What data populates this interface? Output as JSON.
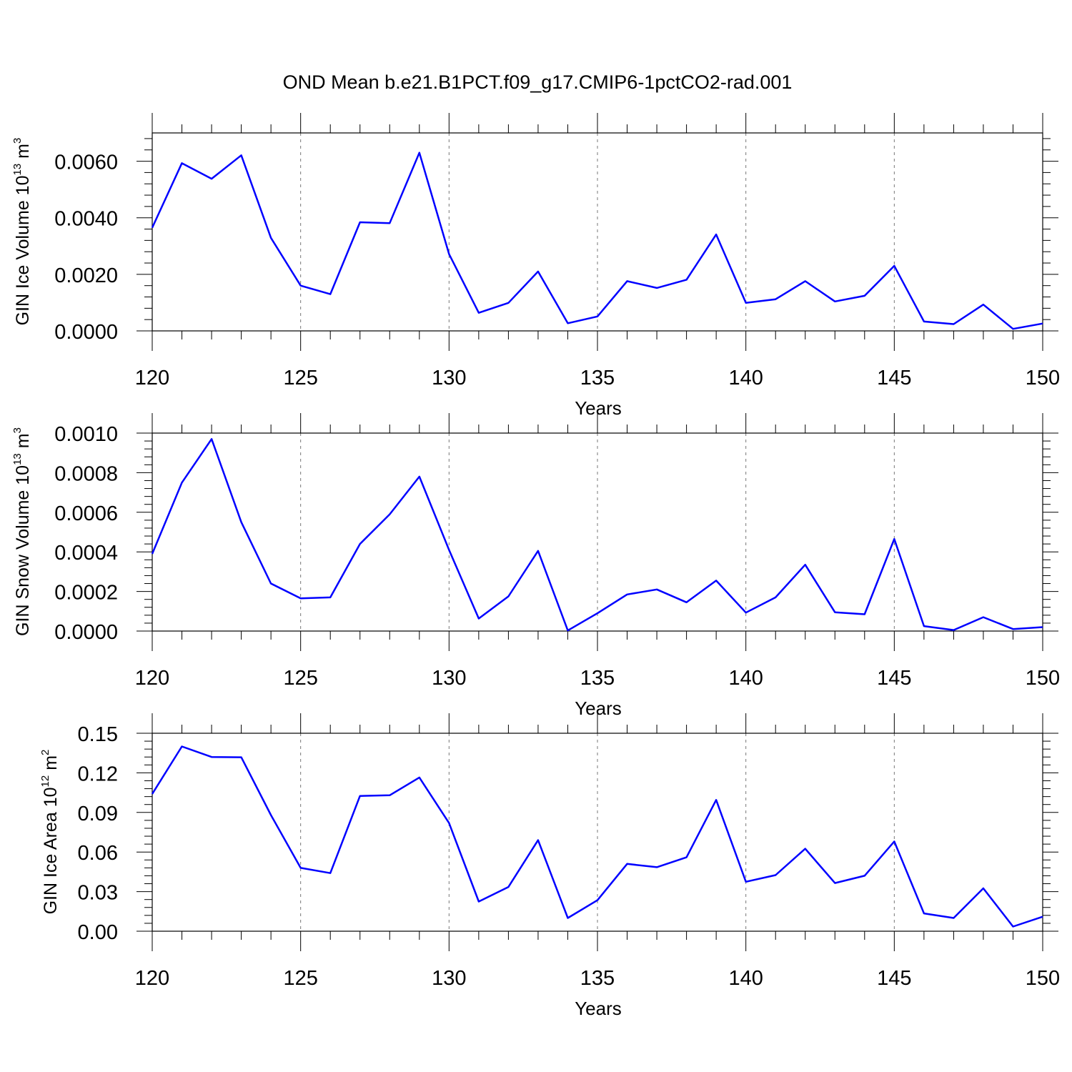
{
  "title": "OND Mean b.e21.B1PCT.f09_g17.CMIP6-1pctCO2-rad.001",
  "line_color": "#0000ff",
  "chart_data": [
    {
      "type": "line",
      "ylabel": "GIN Ice Volume",
      "unit": {
        "base": "10",
        "exp": "13",
        "sym": "m",
        "sym_exp": "3"
      },
      "xlabel": "Years",
      "xlim": [
        120,
        150
      ],
      "ylim": [
        0,
        0.007
      ],
      "xticks": [
        120,
        125,
        130,
        135,
        140,
        145,
        150
      ],
      "xtick_labels": [
        "120",
        "125",
        "130",
        "135",
        "140",
        "145",
        "150"
      ],
      "yticks": [
        0,
        0.002,
        0.004,
        0.006
      ],
      "ytick_labels": [
        "0.0000",
        "0.0020",
        "0.0040",
        "0.0060"
      ],
      "x": [
        120,
        121,
        122,
        123,
        124,
        125,
        126,
        127,
        128,
        129,
        130,
        131,
        132,
        133,
        134,
        135,
        136,
        137,
        138,
        139,
        140,
        141,
        142,
        143,
        144,
        145,
        146,
        147,
        148,
        149,
        150
      ],
      "values": [
        0.00365,
        0.00593,
        0.00538,
        0.00621,
        0.00329,
        0.0016,
        0.0013,
        0.00384,
        0.00381,
        0.0063,
        0.00272,
        0.00064,
        0.00099,
        0.0021,
        0.00027,
        0.00051,
        0.00176,
        0.00152,
        0.00181,
        0.00341,
        0.00099,
        0.00112,
        0.00176,
        0.00104,
        0.00124,
        0.0023,
        0.00033,
        0.00024,
        0.00093,
        7e-05,
        0.00026
      ]
    },
    {
      "type": "line",
      "ylabel": "GIN Snow Volume",
      "unit": {
        "base": "10",
        "exp": "13",
        "sym": "m",
        "sym_exp": "3"
      },
      "xlabel": "Years",
      "xlim": [
        120,
        150
      ],
      "ylim": [
        0,
        0.001
      ],
      "xticks": [
        120,
        125,
        130,
        135,
        140,
        145,
        150
      ],
      "xtick_labels": [
        "120",
        "125",
        "130",
        "135",
        "140",
        "145",
        "150"
      ],
      "yticks": [
        0,
        0.0002,
        0.0004,
        0.0006,
        0.0008,
        0.001
      ],
      "ytick_labels": [
        "0.0000",
        "0.0002",
        "0.0004",
        "0.0006",
        "0.0008",
        "0.0010"
      ],
      "x": [
        120,
        121,
        122,
        123,
        124,
        125,
        126,
        127,
        128,
        129,
        130,
        131,
        132,
        133,
        134,
        135,
        136,
        137,
        138,
        139,
        140,
        141,
        142,
        143,
        144,
        145,
        146,
        147,
        148,
        149,
        150
      ],
      "values": [
        0.00039,
        0.00075,
        0.00097,
        0.00055,
        0.00024,
        0.000165,
        0.00017,
        0.00044,
        0.00059,
        0.00078,
        0.00041,
        6.3e-05,
        0.000175,
        0.000405,
        3e-06,
        9e-05,
        0.000185,
        0.00021,
        0.000145,
        0.000255,
        9.3e-05,
        0.00017,
        0.000335,
        9.5e-05,
        8.5e-05,
        0.000465,
        2.5e-05,
        5e-06,
        7e-05,
        1e-05,
        2e-05
      ]
    },
    {
      "type": "line",
      "ylabel": "GIN Ice Area",
      "unit": {
        "base": "10",
        "exp": "12",
        "sym": "m",
        "sym_exp": "2"
      },
      "xlabel": "Years",
      "xlim": [
        120,
        150
      ],
      "ylim": [
        0,
        0.15
      ],
      "xticks": [
        120,
        125,
        130,
        135,
        140,
        145,
        150
      ],
      "xtick_labels": [
        "120",
        "125",
        "130",
        "135",
        "140",
        "145",
        "150"
      ],
      "yticks": [
        0,
        0.03,
        0.06,
        0.09,
        0.12,
        0.15
      ],
      "ytick_labels": [
        "0.00",
        "0.03",
        "0.06",
        "0.09",
        "0.12",
        "0.15"
      ],
      "x": [
        120,
        121,
        122,
        123,
        124,
        125,
        126,
        127,
        128,
        129,
        130,
        131,
        132,
        133,
        134,
        135,
        136,
        137,
        138,
        139,
        140,
        141,
        142,
        143,
        144,
        145,
        146,
        147,
        148,
        149,
        150
      ],
      "values": [
        0.104,
        0.14,
        0.132,
        0.1318,
        0.088,
        0.048,
        0.044,
        0.1025,
        0.103,
        0.1165,
        0.082,
        0.0225,
        0.0335,
        0.069,
        0.01,
        0.0235,
        0.051,
        0.0485,
        0.056,
        0.0995,
        0.0375,
        0.0425,
        0.0625,
        0.0365,
        0.042,
        0.068,
        0.0135,
        0.01,
        0.0325,
        0.0035,
        0.011
      ]
    }
  ]
}
